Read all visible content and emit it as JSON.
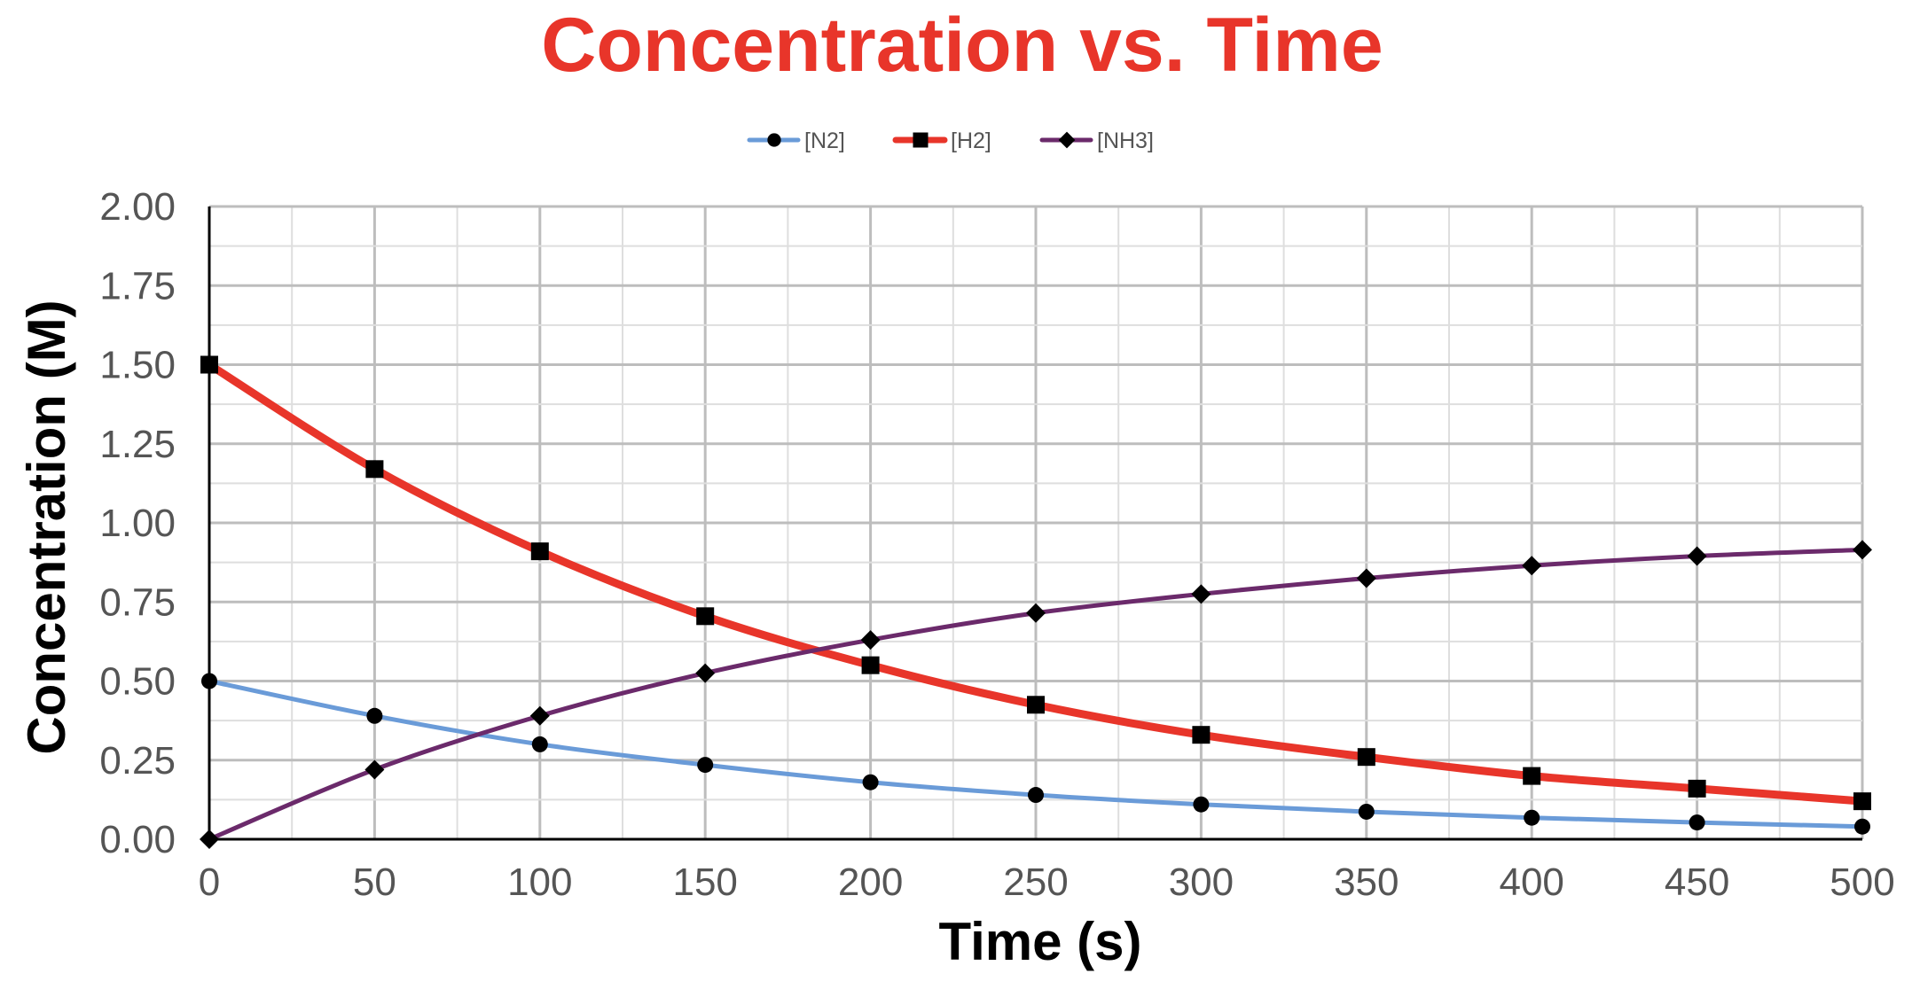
{
  "chart_data": {
    "type": "line",
    "title": "Concentration vs. Time",
    "xlabel": "Time (s)",
    "ylabel": "Concentration (M)",
    "x": [
      0,
      50,
      100,
      150,
      200,
      250,
      300,
      350,
      400,
      450,
      500
    ],
    "x_ticks": [
      "0",
      "50",
      "100",
      "150",
      "200",
      "250",
      "300",
      "350",
      "400",
      "450",
      "500"
    ],
    "y_ticks": [
      "0.00",
      "0.25",
      "0.50",
      "0.75",
      "1.00",
      "1.25",
      "1.50",
      "1.75",
      "2.00"
    ],
    "xlim": [
      0,
      500
    ],
    "ylim": [
      0,
      2.0
    ],
    "grid": true,
    "legend_position": "top-center",
    "series": [
      {
        "name": "[N2]",
        "color": "#6a9bd8",
        "marker": "circle",
        "values": [
          0.5,
          0.39,
          0.3,
          0.235,
          0.18,
          0.14,
          0.11,
          0.087,
          0.068,
          0.053,
          0.04
        ]
      },
      {
        "name": "[H2]",
        "color": "#e8352a",
        "marker": "square",
        "values": [
          1.5,
          1.17,
          0.91,
          0.705,
          0.55,
          0.425,
          0.33,
          0.26,
          0.2,
          0.16,
          0.12
        ]
      },
      {
        "name": "[NH3]",
        "color": "#6b2a6b",
        "marker": "diamond",
        "values": [
          0.0,
          0.22,
          0.39,
          0.525,
          0.63,
          0.715,
          0.775,
          0.825,
          0.865,
          0.895,
          0.915
        ]
      }
    ]
  }
}
